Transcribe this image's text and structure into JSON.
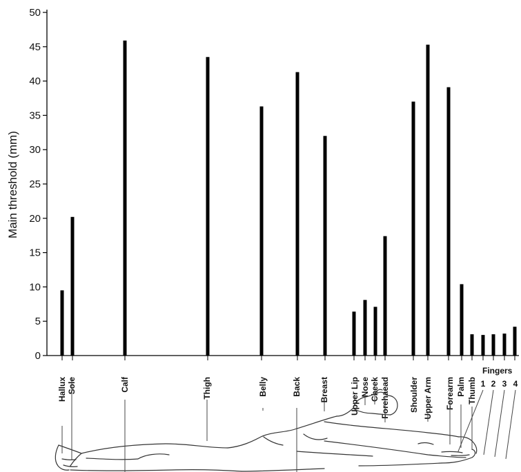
{
  "chart_data": {
    "type": "bar",
    "ylabel": "Main threshold (mm)",
    "xlabel": "",
    "title": "",
    "ylim": [
      0,
      50
    ],
    "yticks": [
      0,
      5,
      10,
      15,
      20,
      25,
      30,
      35,
      40,
      45,
      50
    ],
    "grid": false,
    "categories": [
      "Hallux",
      "Sole",
      "Calf",
      "Thigh",
      "Belly",
      "Back",
      "Breast",
      "Upper Lip",
      "Nose",
      "Cheek",
      "Forehaead",
      "Shoulder",
      "Upper Arm",
      "Forearm",
      "Palm",
      "Thumb",
      "1",
      "2",
      "3",
      "4"
    ],
    "values": [
      9.5,
      20.2,
      45.9,
      43.5,
      36.3,
      41.3,
      32,
      6.4,
      8.1,
      7.1,
      17.4,
      37,
      45.3,
      39.1,
      10.4,
      3.1,
      3,
      3.1,
      3.2,
      4.2
    ],
    "group_label": "Fingers",
    "bar_color": "#000000"
  },
  "figure": {
    "illustration": "reclining-human-figure"
  }
}
